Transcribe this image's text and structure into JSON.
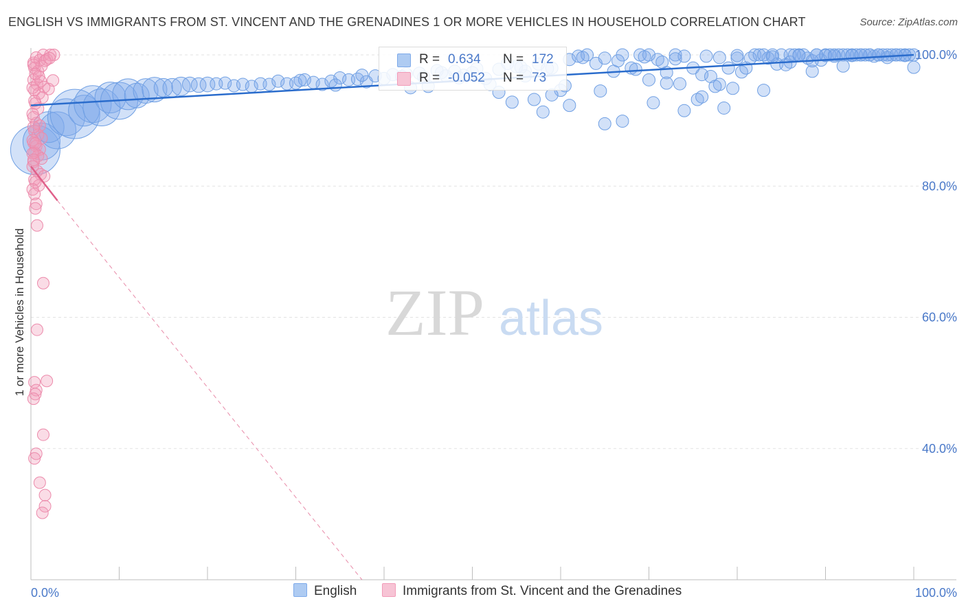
{
  "title": "ENGLISH VS IMMIGRANTS FROM ST. VINCENT AND THE GRENADINES 1 OR MORE VEHICLES IN HOUSEHOLD CORRELATION CHART",
  "source": "Source: ZipAtlas.com",
  "watermark": {
    "zip": "ZIP",
    "atlas": "atlas"
  },
  "legend": {
    "r_label": "R =",
    "n_label": "N =",
    "series": [
      {
        "name": "English",
        "r": "0.634",
        "n": "172"
      },
      {
        "name": "Immigrants from St. Vincent and the Grenadines",
        "r": "-0.052",
        "n": "73"
      }
    ]
  },
  "colors": {
    "english": "#7eaaea",
    "english_line": "#2a6ccc",
    "immigrants": "#f29bb8",
    "immigrants_line": "#e0608a",
    "label_blue": "#4a79c9"
  },
  "chart_data": {
    "type": "scatter",
    "title": "ENGLISH VS IMMIGRANTS FROM ST. VINCENT AND THE GRENADINES 1 OR MORE VEHICLES IN HOUSEHOLD CORRELATION CHART",
    "xlabel": "",
    "ylabel": "1 or more Vehicles in Household",
    "xlim": [
      0,
      100
    ],
    "ylim": [
      20,
      100
    ],
    "x_tick_labels": [
      "0.0%",
      "100.0%"
    ],
    "y_ticks": [
      {
        "value": 100,
        "label": "100.0%"
      },
      {
        "value": 80,
        "label": "80.0%"
      },
      {
        "value": 60,
        "label": "60.0%"
      },
      {
        "value": 40,
        "label": "40.0%"
      }
    ],
    "series": [
      {
        "name": "English",
        "r": 0.634,
        "n": 172,
        "trend": {
          "x": [
            0,
            100
          ],
          "y": [
            92.3,
            100.0
          ]
        },
        "points": [
          [
            0.5,
            85.5,
            4
          ],
          [
            1.2,
            86.8,
            3
          ],
          [
            2,
            89,
            2.5
          ],
          [
            3,
            88.5,
            3
          ],
          [
            4,
            90.5,
            3
          ],
          [
            5,
            91,
            4
          ],
          [
            6,
            91.5,
            2.5
          ],
          [
            7,
            92.5,
            3
          ],
          [
            8,
            92,
            3
          ],
          [
            9,
            93.5,
            2.5
          ],
          [
            10,
            93,
            3
          ],
          [
            11,
            94,
            2.5
          ],
          [
            12,
            93.8,
            2
          ],
          [
            13,
            94.5,
            2
          ],
          [
            14,
            94.7,
            2
          ],
          [
            15,
            95,
            1.5
          ],
          [
            16,
            95,
            1.5
          ],
          [
            17,
            95.2,
            1.5
          ],
          [
            18,
            95.5,
            1.2
          ],
          [
            19,
            95.4,
            1.2
          ],
          [
            20,
            95.5,
            1.2
          ],
          [
            21,
            95.6,
            1
          ],
          [
            22,
            95.7,
            1
          ],
          [
            23,
            95.3,
            1
          ],
          [
            24,
            95.5,
            1
          ],
          [
            25,
            95.2,
            1
          ],
          [
            26,
            95.6,
            1
          ],
          [
            27,
            95.5,
            1
          ],
          [
            28,
            96,
            1
          ],
          [
            29,
            95.6,
            1
          ],
          [
            30,
            95.7,
            1
          ],
          [
            31,
            96.2,
            1
          ],
          [
            32,
            95.8,
            1
          ],
          [
            33,
            95.5,
            1
          ],
          [
            34,
            96,
            1
          ],
          [
            35,
            96.5,
            1
          ],
          [
            36,
            96.2,
            1
          ],
          [
            37,
            96.3,
            1
          ],
          [
            38,
            95.9,
            1
          ],
          [
            39,
            96.8,
            1
          ],
          [
            40,
            96.4,
            1
          ],
          [
            41,
            97,
            1
          ],
          [
            42,
            96.7,
            1
          ],
          [
            43,
            95,
            1
          ],
          [
            44,
            97.2,
            1
          ],
          [
            45,
            95.2,
            1
          ],
          [
            46,
            97.6,
            1
          ],
          [
            47,
            96.8,
            1
          ],
          [
            48,
            97.5,
            1
          ],
          [
            49,
            96.9,
            1
          ],
          [
            50,
            97.3,
            1
          ],
          [
            52,
            95.5,
            1
          ],
          [
            53,
            97.8,
            1
          ],
          [
            54,
            98.7,
            1
          ],
          [
            55,
            98.2,
            1
          ],
          [
            56,
            97.5,
            1
          ],
          [
            57,
            93.2,
            1
          ],
          [
            58,
            91.3,
            1
          ],
          [
            59,
            98,
            1
          ],
          [
            60,
            94.6,
            1
          ],
          [
            61,
            99.3,
            1
          ],
          [
            62,
            99.8,
            1
          ],
          [
            63,
            100,
            1
          ],
          [
            64,
            98.7,
            1
          ],
          [
            65,
            99.5,
            1
          ],
          [
            66,
            97.5,
            1
          ],
          [
            67,
            100,
            1
          ],
          [
            68,
            98,
            1
          ],
          [
            69,
            100,
            1
          ],
          [
            70,
            100,
            1
          ],
          [
            71,
            99.3,
            1
          ],
          [
            72,
            97.3,
            1
          ],
          [
            73,
            100,
            1
          ],
          [
            74,
            99.8,
            1
          ],
          [
            75,
            98,
            1
          ],
          [
            76,
            97,
            1
          ],
          [
            77,
            96.7,
            1
          ],
          [
            78,
            95.5,
            1
          ],
          [
            79,
            98,
            1
          ],
          [
            80,
            99.5,
            1
          ],
          [
            82,
            100,
            1
          ],
          [
            83,
            94.6,
            1
          ],
          [
            84,
            100,
            1
          ],
          [
            85,
            100,
            1
          ],
          [
            86,
            100,
            1
          ],
          [
            87,
            100,
            1
          ],
          [
            88,
            99.5,
            1
          ],
          [
            89,
            100,
            1
          ],
          [
            90,
            100,
            1
          ],
          [
            91,
            100,
            1
          ],
          [
            92,
            100,
            1
          ],
          [
            93,
            100,
            1
          ],
          [
            94,
            100,
            1
          ],
          [
            95,
            100,
            1
          ],
          [
            96,
            100,
            1
          ],
          [
            97,
            100,
            1
          ],
          [
            98,
            100,
            1
          ],
          [
            99,
            100,
            1
          ],
          [
            100,
            98.1,
            1
          ],
          [
            53,
            94.3,
            1
          ],
          [
            54.5,
            92.8,
            1
          ],
          [
            60.5,
            95.3,
            1
          ],
          [
            61,
            92.3,
            1
          ],
          [
            65,
            89.5,
            1
          ],
          [
            67,
            89.9,
            1
          ],
          [
            56,
            96.8,
            1
          ],
          [
            68.5,
            97.8,
            1
          ],
          [
            70,
            96.2,
            1
          ],
          [
            72,
            95.7,
            1
          ],
          [
            74,
            91.5,
            1
          ],
          [
            75.5,
            93.2,
            1
          ],
          [
            76,
            93.6,
            1
          ],
          [
            77.5,
            95.2,
            1
          ],
          [
            78.5,
            91.9,
            1
          ],
          [
            80.5,
            97.4,
            1
          ],
          [
            81,
            98,
            1
          ],
          [
            82.5,
            100,
            1
          ],
          [
            83.5,
            99.5,
            1
          ],
          [
            84.5,
            98.6,
            1
          ],
          [
            86,
            98.9,
            1
          ],
          [
            87.5,
            100,
            1
          ],
          [
            88.5,
            97.5,
            1
          ],
          [
            89.5,
            99.2,
            1
          ],
          [
            90,
            99.9,
            1
          ],
          [
            91.5,
            100,
            1
          ],
          [
            92.5,
            100,
            1
          ],
          [
            93.5,
            100,
            1
          ],
          [
            94.5,
            100,
            1
          ],
          [
            95.5,
            99.8,
            1
          ],
          [
            96.5,
            100,
            1
          ],
          [
            97.5,
            100,
            1
          ],
          [
            98.5,
            100,
            1
          ],
          [
            99.5,
            100,
            1
          ],
          [
            59,
            93.9,
            1
          ],
          [
            64.5,
            94.5,
            1
          ],
          [
            70.5,
            92.7,
            1
          ],
          [
            73.5,
            95.6,
            1
          ],
          [
            79.5,
            94.9,
            1
          ],
          [
            85.5,
            98.5,
            1
          ],
          [
            88.5,
            99.1,
            1
          ],
          [
            92,
            98.3,
            1
          ],
          [
            95,
            100,
            1
          ],
          [
            97,
            99.6,
            1
          ],
          [
            99,
            99.9,
            1
          ],
          [
            30.5,
            96.1,
            1
          ],
          [
            34.5,
            95.4,
            1
          ],
          [
            37.5,
            96.9,
            1
          ],
          [
            42.5,
            97.1,
            1
          ],
          [
            44.5,
            96.6,
            1
          ],
          [
            46.5,
            97.3,
            1
          ],
          [
            48.5,
            96.5,
            1
          ],
          [
            50.5,
            97.9,
            1
          ],
          [
            51.5,
            96.4,
            1
          ],
          [
            55.5,
            98.1,
            1
          ],
          [
            57.5,
            98.6,
            1
          ],
          [
            58.5,
            97.9,
            1
          ],
          [
            62.5,
            99.6,
            1
          ],
          [
            66.5,
            99.1,
            1
          ],
          [
            69.5,
            99.7,
            1
          ],
          [
            71.5,
            98.9,
            1
          ],
          [
            73,
            99.4,
            1
          ],
          [
            76.5,
            99.8,
            1
          ],
          [
            78,
            99.6,
            1
          ],
          [
            80,
            99.9,
            1
          ],
          [
            81.5,
            99.5,
            1
          ],
          [
            83,
            100,
            1
          ],
          [
            84,
            99.7,
            1
          ],
          [
            86.5,
            100,
            1
          ],
          [
            87,
            99.9,
            1
          ],
          [
            89,
            100,
            1
          ],
          [
            90.5,
            100,
            1
          ],
          [
            91,
            99.8,
            1
          ],
          [
            93,
            99.9,
            1
          ],
          [
            94,
            100,
            1
          ],
          [
            96,
            100,
            1
          ],
          [
            98,
            100,
            1
          ],
          [
            100,
            100,
            1
          ]
        ]
      },
      {
        "name": "Immigrants from St. Vincent and the Grenadines",
        "r": -0.052,
        "n": 73,
        "trend": {
          "x": [
            0,
            3
          ],
          "y": [
            83.0,
            77.8
          ]
        },
        "trend_extended": {
          "x": [
            3,
            37.5
          ],
          "y": [
            77.8,
            20
          ]
        },
        "points": [
          [
            0.3,
            98.8
          ],
          [
            0.6,
            99.6
          ],
          [
            1,
            99.2
          ],
          [
            1.4,
            100
          ],
          [
            1.8,
            99.3
          ],
          [
            2.2,
            100
          ],
          [
            2.6,
            100
          ],
          [
            0.4,
            98
          ],
          [
            0.8,
            97.5
          ],
          [
            1.2,
            98.3
          ],
          [
            0.3,
            96.2
          ],
          [
            0.7,
            95.5
          ],
          [
            1.1,
            96
          ],
          [
            1.5,
            95.1
          ],
          [
            2,
            94.8
          ],
          [
            2.5,
            96.1
          ],
          [
            0.4,
            94.6
          ],
          [
            0.9,
            94.1
          ],
          [
            1.3,
            93.5
          ],
          [
            0.5,
            92.6
          ],
          [
            0.8,
            91.8
          ],
          [
            0.3,
            90.5
          ],
          [
            0.6,
            89.6
          ],
          [
            1,
            89.2
          ],
          [
            0.4,
            88.4
          ],
          [
            0.8,
            87.8
          ],
          [
            1.2,
            87.3
          ],
          [
            0.3,
            86.6
          ],
          [
            0.6,
            86.1
          ],
          [
            1,
            85.6
          ],
          [
            0.4,
            85.1
          ],
          [
            0.8,
            84.6
          ],
          [
            1.2,
            84.2
          ],
          [
            0.3,
            83.7
          ],
          [
            0.7,
            82.3
          ],
          [
            1.1,
            81.8
          ],
          [
            1.5,
            81.5
          ],
          [
            0.5,
            80.6
          ],
          [
            0.9,
            80.1
          ],
          [
            0.4,
            78.8
          ],
          [
            0.6,
            77.3
          ],
          [
            0.5,
            76.6
          ],
          [
            0.7,
            74
          ],
          [
            1.4,
            65.2
          ],
          [
            0.7,
            58.1
          ],
          [
            1.8,
            50.3
          ],
          [
            0.4,
            50.1
          ],
          [
            0.6,
            48.9
          ],
          [
            0.5,
            48.3
          ],
          [
            0.3,
            47.6
          ],
          [
            1.4,
            42.1
          ],
          [
            0.6,
            39.2
          ],
          [
            0.4,
            38.5
          ],
          [
            1,
            34.8
          ],
          [
            1.6,
            32.9
          ],
          [
            1.6,
            31.2
          ],
          [
            1.3,
            30.2
          ],
          [
            0.3,
            98.5
          ],
          [
            0.5,
            97.1
          ],
          [
            0.9,
            96.7
          ],
          [
            1.6,
            99.1
          ],
          [
            2.1,
            99.5
          ],
          [
            0.2,
            95
          ],
          [
            0.4,
            93
          ],
          [
            0.2,
            91
          ],
          [
            0.3,
            89
          ],
          [
            0.2,
            87
          ],
          [
            0.5,
            86.5
          ],
          [
            0.2,
            85
          ],
          [
            0.3,
            84
          ],
          [
            0.2,
            83
          ],
          [
            0.4,
            81
          ],
          [
            0.2,
            79.5
          ]
        ]
      }
    ]
  }
}
